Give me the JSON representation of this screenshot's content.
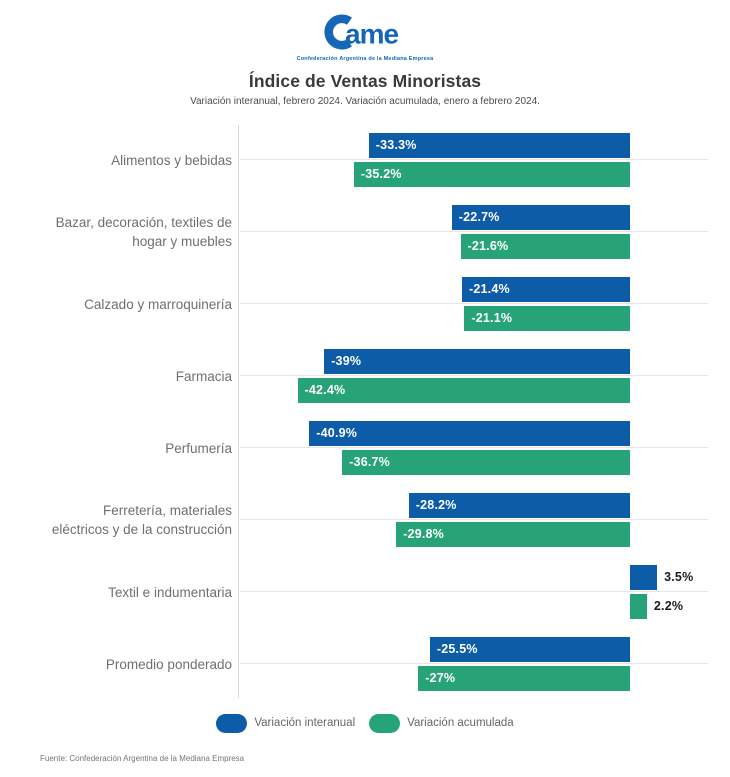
{
  "logo": {
    "text": "Came",
    "tagline": "Confederación Argentina de la Mediana Empresa",
    "color": "#1566b8"
  },
  "footer": {
    "source": "Fuente: Confederación Argentina de la Mediana Empresa"
  },
  "chart_data": {
    "type": "bar",
    "orientation": "horizontal",
    "title": "Índice de Ventas Minoristas",
    "subtitle": "Variación interanual, febrero 2024. Variación acumulada, enero a febrero 2024.",
    "categories": [
      "Alimentos y bebidas",
      "Bazar, decoración, textiles de\nhogar y muebles",
      "Calzado y marroquinería",
      "Farmacia",
      "Perfumería",
      "Ferretería, materiales\neléctricos y de la construcción",
      "Textil e indumentaria",
      "Promedio ponderado"
    ],
    "series": [
      {
        "name": "Variación interanual",
        "color": "#0d5ca8",
        "values": [
          -33.3,
          -22.7,
          -21.4,
          -39,
          -40.9,
          -28.2,
          3.5,
          -25.5
        ],
        "labels": [
          "-33.3%",
          "-22.7%",
          "-21.4%",
          "-39%",
          "-40.9%",
          "-28.2%",
          "3.5%",
          "-25.5%"
        ]
      },
      {
        "name": "Variación acumulada",
        "color": "#26a478",
        "values": [
          -35.2,
          -21.6,
          -21.1,
          -42.4,
          -36.7,
          -29.8,
          2.2,
          -27
        ],
        "labels": [
          "-35.2%",
          "-21.6%",
          "-21.1%",
          "-42.4%",
          "-36.7%",
          "-29.8%",
          "2.2%",
          "-27%"
        ]
      }
    ],
    "xlim": [
      -50,
      10
    ],
    "value_labels": "inside bar start for negative, outside right for positive",
    "grid": "horizontal category gridlines",
    "legend_position": "bottom"
  }
}
